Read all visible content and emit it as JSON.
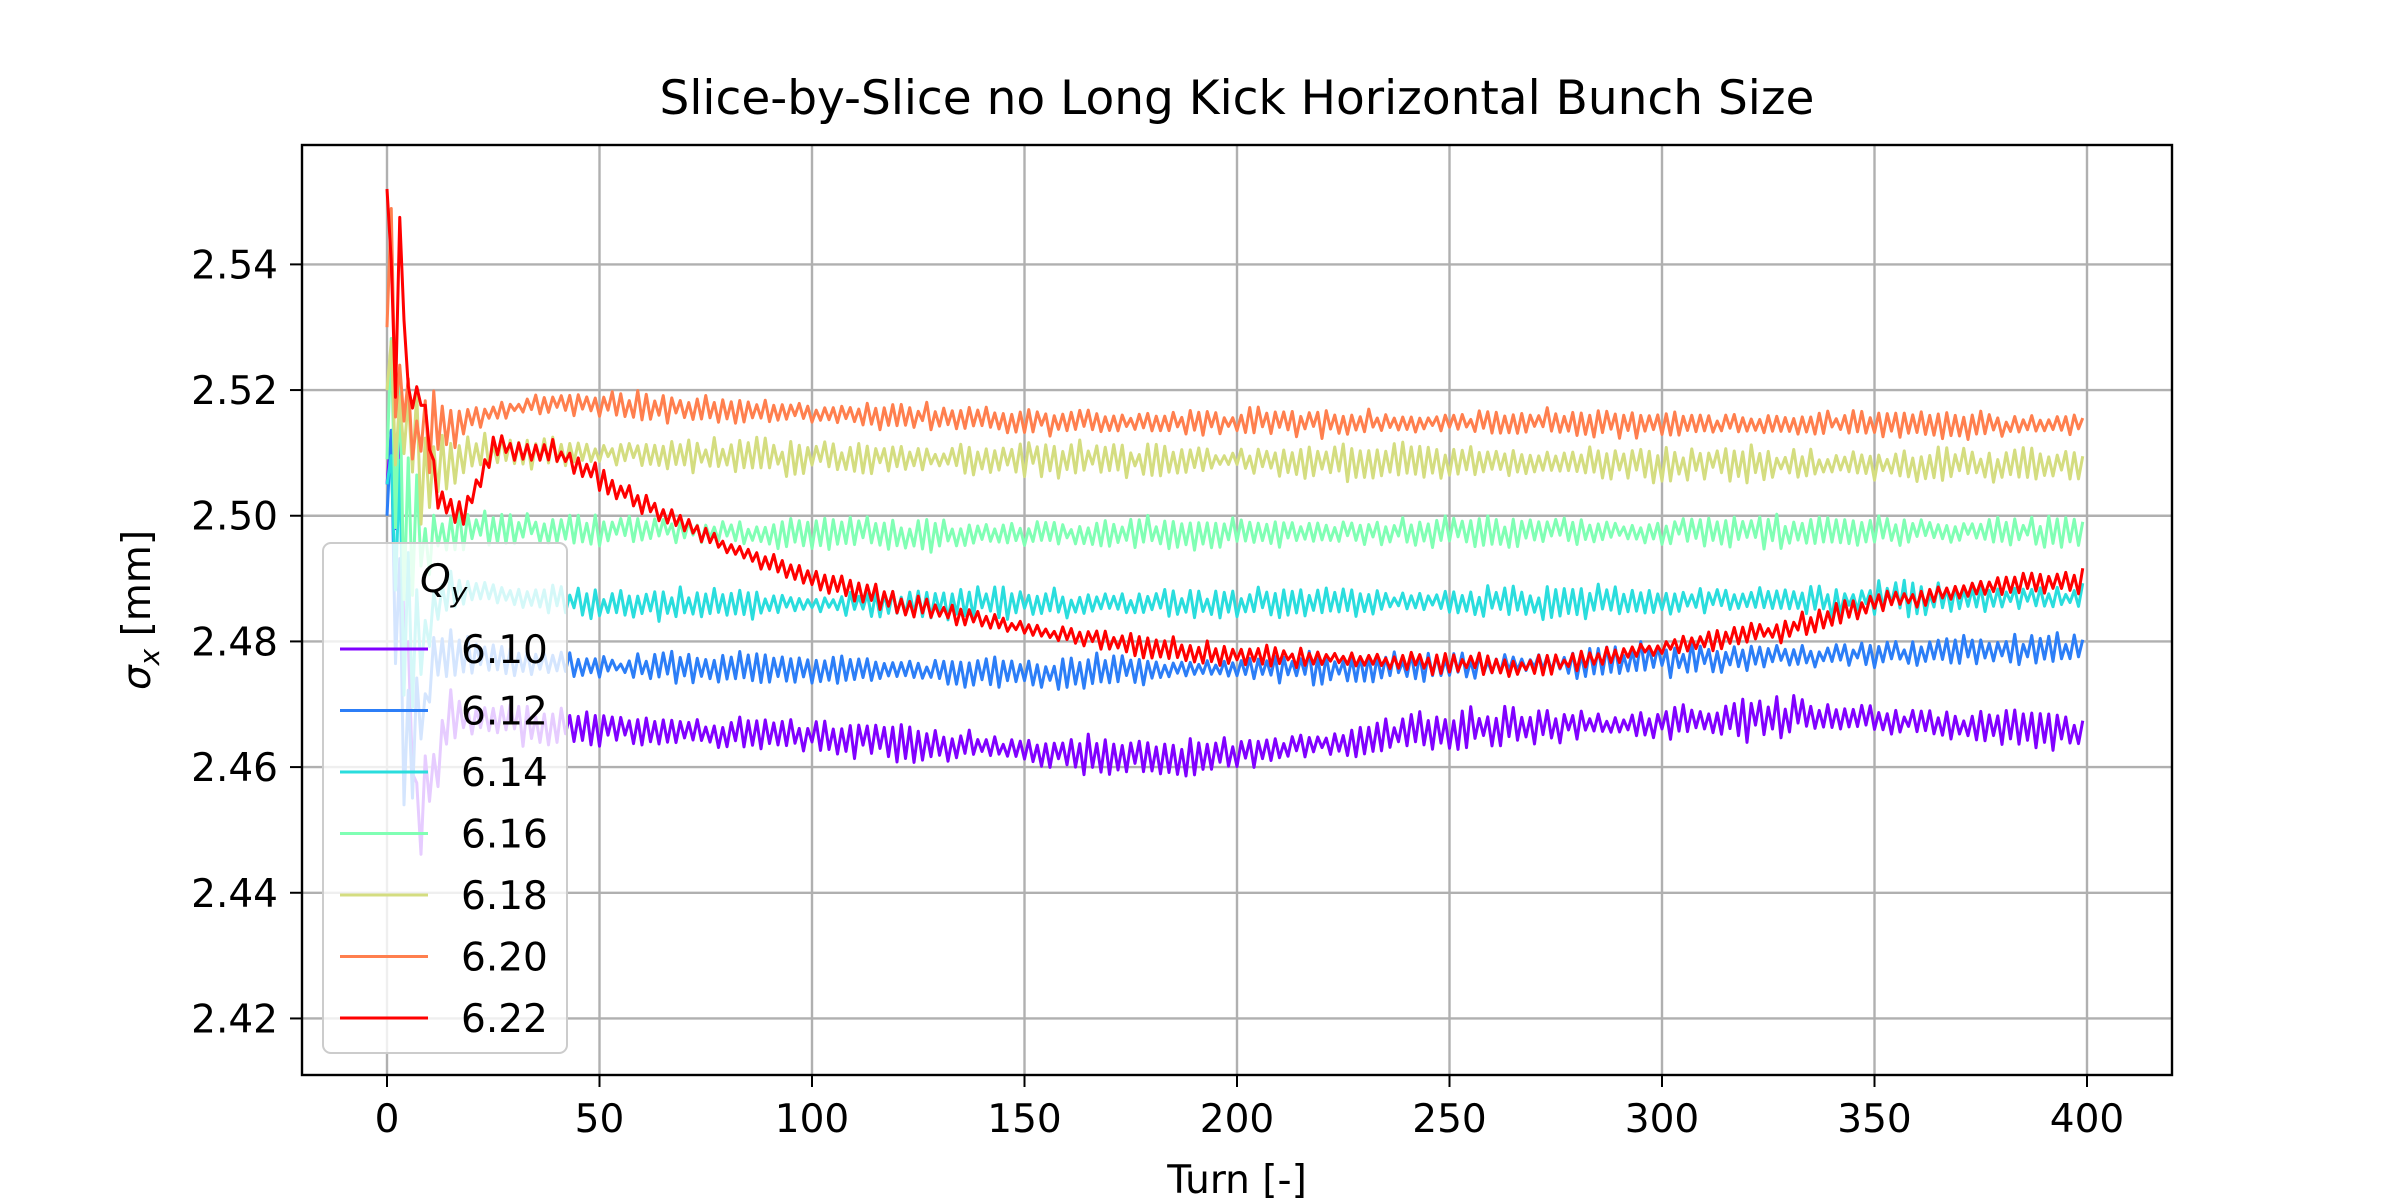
{
  "chart_data": {
    "type": "line",
    "title": "Slice-by-Slice no Long Kick Horizontal Bunch Size",
    "xlabel": "Turn [-]",
    "ylabel_symbol": "σ",
    "ylabel_sub": "x",
    "ylabel_unit": " [mm]",
    "xlim": [
      -20,
      420
    ],
    "ylim": [
      2.411,
      2.559
    ],
    "xticks": [
      0,
      50,
      100,
      150,
      200,
      250,
      300,
      350,
      400
    ],
    "yticks": [
      2.42,
      2.44,
      2.46,
      2.48,
      2.5,
      2.52,
      2.54
    ],
    "ytick_labels": [
      "2.42",
      "2.44",
      "2.46",
      "2.48",
      "2.50",
      "2.52",
      "2.54"
    ],
    "grid": true,
    "legend": {
      "title_symbol": "Q",
      "title_sub": "y",
      "position": "lower-left"
    },
    "turns": 400,
    "series": [
      {
        "name": "6.10",
        "color": "#8000ff",
        "start": 2.505,
        "mean": 2.4655,
        "mean_end": 2.4665,
        "noise": 0.003,
        "decay": 10,
        "anchors": [
          [
            0,
            2.505
          ],
          [
            3,
            2.5045
          ],
          [
            7,
            2.45
          ],
          [
            15,
            2.468
          ],
          [
            50,
            2.466
          ],
          [
            100,
            2.465
          ],
          [
            185,
            2.461
          ],
          [
            250,
            2.466
          ],
          [
            340,
            2.468
          ],
          [
            399,
            2.4655
          ]
        ]
      },
      {
        "name": "6.12",
        "color": "#2c7ef7",
        "start": 2.5,
        "mean": 2.4755,
        "mean_end": 2.476,
        "noise": 0.0025,
        "decay": 8,
        "anchors": [
          [
            0,
            2.5
          ],
          [
            5,
            2.46
          ],
          [
            12,
            2.478
          ],
          [
            50,
            2.476
          ],
          [
            150,
            2.475
          ],
          [
            250,
            2.476
          ],
          [
            399,
            2.479
          ]
        ]
      },
      {
        "name": "6.14",
        "color": "#2adddd",
        "start": 2.505,
        "mean": 2.486,
        "mean_end": 2.4865,
        "noise": 0.0025,
        "decay": 8,
        "anchors": [
          [
            0,
            2.505
          ],
          [
            6,
            2.478
          ],
          [
            14,
            2.488
          ],
          [
            50,
            2.486
          ],
          [
            200,
            2.486
          ],
          [
            399,
            2.487
          ]
        ]
      },
      {
        "name": "6.16",
        "color": "#80ffb4",
        "start": 2.509,
        "mean": 2.4975,
        "mean_end": 2.4975,
        "noise": 0.0025,
        "decay": 8,
        "anchors": [
          [
            0,
            2.509
          ],
          [
            8,
            2.495
          ],
          [
            20,
            2.498
          ],
          [
            120,
            2.497
          ],
          [
            260,
            2.4975
          ],
          [
            399,
            2.4975
          ]
        ]
      },
      {
        "name": "6.18",
        "color": "#d4dd80",
        "start": 2.52,
        "mean": 2.509,
        "mean_end": 2.5085,
        "noise": 0.0028,
        "decay": 8,
        "anchors": [
          [
            0,
            2.52
          ],
          [
            8,
            2.507
          ],
          [
            25,
            2.51
          ],
          [
            150,
            2.509
          ],
          [
            399,
            2.508
          ]
        ]
      },
      {
        "name": "6.20",
        "color": "#ff7f4e",
        "start": 2.53,
        "mean": 2.5155,
        "mean_end": 2.515,
        "noise": 0.0022,
        "decay": 6,
        "anchors": [
          [
            0,
            2.53
          ],
          [
            6,
            2.513
          ],
          [
            35,
            2.518
          ],
          [
            150,
            2.515
          ],
          [
            399,
            2.5145
          ]
        ]
      },
      {
        "name": "6.22",
        "color": "#ff0000",
        "start": 2.552,
        "mean": 2.5,
        "mean_end": 2.489,
        "noise": 0.0018,
        "decay": 12,
        "anchors": [
          [
            0,
            2.552
          ],
          [
            2,
            2.522
          ],
          [
            3,
            2.546
          ],
          [
            5,
            2.519
          ],
          [
            8,
            2.52
          ],
          [
            12,
            2.503
          ],
          [
            18,
            2.5
          ],
          [
            25,
            2.511
          ],
          [
            40,
            2.51
          ],
          [
            60,
            2.502
          ],
          [
            80,
            2.495
          ],
          [
            100,
            2.49
          ],
          [
            120,
            2.486
          ],
          [
            150,
            2.482
          ],
          [
            190,
            2.478
          ],
          [
            230,
            2.477
          ],
          [
            270,
            2.476
          ],
          [
            300,
            2.479
          ],
          [
            330,
            2.482
          ],
          [
            350,
            2.486
          ],
          [
            380,
            2.489
          ],
          [
            399,
            2.4895
          ]
        ]
      }
    ]
  }
}
